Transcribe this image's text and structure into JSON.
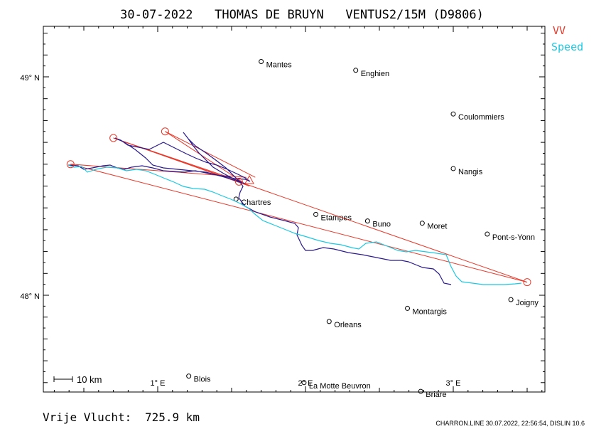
{
  "title": "30-07-2022   THOMAS DE BRUYN   VENTUS2/15M (D9806)",
  "legend": [
    {
      "label": "VV",
      "color": "#e8392a"
    },
    {
      "label": "Speed",
      "color": "#1ec8e0"
    }
  ],
  "axes": {
    "lat_labels": [
      {
        "label": "49° N",
        "lat": 49.0
      },
      {
        "label": "48° N",
        "lat": 48.0
      }
    ],
    "lon_labels": [
      {
        "label": "1° E",
        "lon": 1.0
      },
      {
        "label": "2° E",
        "lon": 2.0
      },
      {
        "label": "3° E",
        "lon": 3.0
      }
    ]
  },
  "towns": [
    {
      "name": "Mantes",
      "lon": 1.7,
      "lat": 49.07
    },
    {
      "name": "Enghien",
      "lon": 2.34,
      "lat": 49.03
    },
    {
      "name": "Coulommiers",
      "lon": 3.0,
      "lat": 48.83
    },
    {
      "name": "Nangis",
      "lon": 3.0,
      "lat": 48.58
    },
    {
      "name": "Chartres",
      "lon": 1.53,
      "lat": 48.44
    },
    {
      "name": "Etampes",
      "lon": 2.07,
      "lat": 48.37
    },
    {
      "name": "Buno",
      "lon": 2.42,
      "lat": 48.34
    },
    {
      "name": "Moret",
      "lon": 2.79,
      "lat": 48.33
    },
    {
      "name": "Pont-s-Yonn",
      "lon": 3.23,
      "lat": 48.28
    },
    {
      "name": "Joigny",
      "lon": 3.39,
      "lat": 47.98
    },
    {
      "name": "Montargis",
      "lon": 2.69,
      "lat": 47.94
    },
    {
      "name": "Orleans",
      "lon": 2.16,
      "lat": 47.88
    },
    {
      "name": "Blois",
      "lon": 1.21,
      "lat": 47.63
    },
    {
      "name": "La Motte Beuvron",
      "lon": 1.99,
      "lat": 47.6
    },
    {
      "name": "Briare",
      "lon": 2.78,
      "lat": 47.56
    }
  ],
  "turnpoints": [
    {
      "lon": 0.41,
      "lat": 48.6
    },
    {
      "lon": 0.7,
      "lat": 48.72
    },
    {
      "lon": 1.05,
      "lat": 48.75
    },
    {
      "lon": 1.55,
      "lat": 48.52
    },
    {
      "lon": 3.5,
      "lat": 48.06
    }
  ],
  "task_legs": [
    [
      0.41,
      48.6,
      3.5,
      48.06
    ],
    [
      0.41,
      48.6,
      1.6,
      48.54
    ],
    [
      0.7,
      48.72,
      1.57,
      48.52
    ],
    [
      0.7,
      48.72,
      1.62,
      48.5
    ],
    [
      0.7,
      48.72,
      3.5,
      48.06
    ],
    [
      1.05,
      48.75,
      1.57,
      48.52
    ],
    [
      1.05,
      48.75,
      1.66,
      48.54
    ]
  ],
  "scale_bar": {
    "label": "10 km"
  },
  "distance": {
    "label": "Vrije Vlucht:",
    "value": "725.9 km"
  },
  "footer": "CHARRON.LINE 30.07.2022, 22:56:54, DISLIN 10.6",
  "colors": {
    "track": "#2a1a8c",
    "speed": "#1ec8e0",
    "task": "#e8392a",
    "frame": "#000000"
  }
}
